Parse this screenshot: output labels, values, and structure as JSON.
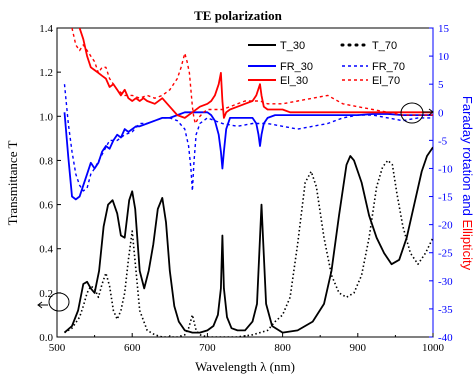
{
  "chart_data": {
    "type": "line",
    "title": "TE polarization",
    "xlabel": "Wavelength λ (nm)",
    "ylabel_left": "Transmittance T",
    "ylabel_right_parts": [
      "Faraday rotation",
      " and ",
      "Ellipticity"
    ],
    "xlim": [
      500,
      1000
    ],
    "ylim_left": [
      0,
      1.4
    ],
    "ylim_right": [
      -40,
      15
    ],
    "xticks": [
      500,
      600,
      700,
      800,
      900,
      1000
    ],
    "yticks_left": [
      0.0,
      0.2,
      0.4,
      0.6,
      0.8,
      1.0,
      1.2,
      1.4
    ],
    "yticks_right": [
      -40,
      -35,
      -30,
      -25,
      -20,
      -15,
      -10,
      -5,
      0,
      5,
      10,
      15
    ],
    "legend_position": "top-right",
    "grid": false,
    "series": [
      {
        "name": "T_30",
        "axis": "left",
        "color": "#000000",
        "style": "solid",
        "x": [
          510,
          520,
          528,
          535,
          540,
          545,
          550,
          556,
          562,
          568,
          574,
          580,
          585,
          590,
          596,
          600,
          604,
          610,
          616,
          622,
          628,
          634,
          640,
          645,
          650,
          656,
          662,
          670,
          680,
          690,
          700,
          708,
          714,
          718,
          720,
          722,
          726,
          732,
          740,
          750,
          760,
          766,
          770,
          772,
          774,
          778,
          786,
          800,
          820,
          840,
          855,
          865,
          875,
          885,
          890,
          895,
          905,
          915,
          925,
          935,
          945,
          955,
          965,
          975,
          985,
          992,
          1000
        ],
        "y": [
          0.02,
          0.05,
          0.12,
          0.24,
          0.25,
          0.22,
          0.2,
          0.3,
          0.5,
          0.6,
          0.62,
          0.56,
          0.46,
          0.45,
          0.62,
          0.66,
          0.58,
          0.3,
          0.22,
          0.3,
          0.42,
          0.58,
          0.63,
          0.52,
          0.3,
          0.14,
          0.07,
          0.03,
          0.02,
          0.02,
          0.03,
          0.05,
          0.1,
          0.22,
          0.46,
          0.22,
          0.09,
          0.04,
          0.03,
          0.03,
          0.07,
          0.15,
          0.45,
          0.6,
          0.45,
          0.15,
          0.05,
          0.02,
          0.03,
          0.07,
          0.15,
          0.3,
          0.55,
          0.78,
          0.82,
          0.8,
          0.7,
          0.55,
          0.45,
          0.38,
          0.33,
          0.35,
          0.45,
          0.6,
          0.75,
          0.82,
          0.86
        ]
      },
      {
        "name": "T_70",
        "axis": "left",
        "color": "#000000",
        "style": "dotted",
        "x": [
          510,
          520,
          530,
          535,
          540,
          545,
          550,
          555,
          560,
          565,
          570,
          575,
          580,
          585,
          590,
          595,
          600,
          605,
          610,
          620,
          630,
          640,
          660,
          670,
          675,
          680,
          685,
          690,
          700,
          720,
          740,
          760,
          780,
          790,
          800,
          810,
          820,
          830,
          838,
          845,
          855,
          865,
          875,
          885,
          895,
          905,
          915,
          925,
          933,
          940,
          946,
          952,
          960,
          970,
          980,
          990,
          1000
        ],
        "y": [
          0.02,
          0.04,
          0.09,
          0.14,
          0.2,
          0.23,
          0.22,
          0.18,
          0.24,
          0.29,
          0.23,
          0.12,
          0.08,
          0.12,
          0.2,
          0.35,
          0.48,
          0.3,
          0.12,
          0.03,
          0.01,
          0.0,
          0.0,
          0.01,
          0.04,
          0.1,
          0.03,
          0.01,
          0.0,
          0.0,
          0.0,
          0.01,
          0.03,
          0.07,
          0.1,
          0.18,
          0.42,
          0.7,
          0.75,
          0.68,
          0.45,
          0.28,
          0.2,
          0.18,
          0.2,
          0.28,
          0.45,
          0.68,
          0.77,
          0.8,
          0.78,
          0.65,
          0.5,
          0.38,
          0.33,
          0.38,
          0.45
        ]
      },
      {
        "name": "FR_30",
        "axis": "right",
        "color": "#0000ff",
        "style": "solid",
        "x": [
          510,
          515,
          520,
          525,
          530,
          535,
          540,
          545,
          550,
          555,
          560,
          565,
          570,
          575,
          580,
          585,
          590,
          595,
          600,
          605,
          610,
          620,
          630,
          640,
          650,
          660,
          670,
          680,
          690,
          700,
          705,
          710,
          715,
          718,
          720,
          722,
          725,
          730,
          740,
          750,
          760,
          765,
          768,
          770,
          772,
          775,
          780,
          790,
          800,
          820,
          840,
          860,
          880,
          900,
          920,
          940,
          960,
          980,
          1000
        ],
        "y": [
          0,
          -8,
          -15,
          -15.5,
          -15,
          -13,
          -11,
          -9,
          -10,
          -9,
          -7,
          -6,
          -6.5,
          -5,
          -4,
          -4.5,
          -3,
          -3.5,
          -3,
          -2.5,
          -2.5,
          -2,
          -1.5,
          -1,
          -1,
          -0.5,
          0,
          0,
          0,
          0,
          -0.5,
          -1.5,
          -4,
          -7,
          -10,
          -7,
          -3,
          -1,
          -1,
          -1,
          -1,
          -2,
          -4,
          -6,
          -4,
          -2,
          -1,
          -0.5,
          -0.5,
          -0.5,
          -0.5,
          -0.5,
          -0.5,
          -0.5,
          -0.3,
          -0.3,
          -0.5,
          -0.5,
          -0.5
        ]
      },
      {
        "name": "FR_70",
        "axis": "right",
        "color": "#0000ff",
        "style": "dotted",
        "x": [
          510,
          515,
          520,
          525,
          530,
          535,
          540,
          545,
          550,
          560,
          570,
          580,
          590,
          600,
          610,
          620,
          630,
          640,
          650,
          660,
          670,
          675,
          678,
          680,
          682,
          685,
          690,
          700,
          710,
          720,
          740,
          760,
          780,
          800,
          820,
          840,
          860,
          880,
          900,
          920,
          940,
          960,
          980,
          1000
        ],
        "y": [
          5,
          -2,
          -7,
          -11,
          -13,
          -14,
          -13.5,
          -11,
          -10,
          -7.5,
          -5,
          -5,
          -4,
          -3.5,
          -2,
          -2,
          -1.5,
          -1,
          -1,
          -1.5,
          -3,
          -6,
          -10,
          -14,
          -9,
          -4,
          -2,
          -1,
          -1.5,
          -2,
          -2.5,
          -2,
          -2,
          -2.5,
          -3,
          -2.5,
          -2,
          -1,
          -0.5,
          -0.5,
          -1,
          -1.5,
          -1,
          -1
        ]
      },
      {
        "name": "El_30",
        "axis": "right",
        "color": "#ff0000",
        "style": "solid",
        "x": [
          530,
          535,
          540,
          545,
          550,
          555,
          560,
          565,
          570,
          575,
          580,
          585,
          590,
          595,
          600,
          605,
          610,
          615,
          620,
          630,
          640,
          650,
          660,
          670,
          680,
          690,
          700,
          705,
          710,
          715,
          718,
          720,
          722,
          725,
          730,
          740,
          750,
          760,
          765,
          770,
          772,
          775,
          780,
          790,
          800,
          810,
          820,
          840,
          860,
          880,
          900,
          920,
          940,
          960,
          980,
          1000
        ],
        "y": [
          15,
          13,
          10,
          8,
          7.5,
          7,
          6.5,
          6,
          4.5,
          5,
          4,
          3,
          4,
          2.5,
          2,
          2.5,
          2,
          2.5,
          2,
          1.5,
          2.5,
          1,
          -0.5,
          -1,
          0,
          1,
          1.5,
          2,
          3,
          5,
          7,
          2,
          -1,
          0,
          0.5,
          1,
          1.5,
          2,
          3,
          5,
          3,
          1,
          0.5,
          0.5,
          0.5,
          0,
          0,
          0,
          0,
          0,
          0,
          0,
          0,
          0,
          0,
          0
        ]
      },
      {
        "name": "El_70",
        "axis": "right",
        "color": "#ff0000",
        "style": "dotted",
        "x": [
          520,
          525,
          530,
          535,
          540,
          545,
          550,
          555,
          560,
          565,
          570,
          575,
          580,
          590,
          600,
          610,
          620,
          630,
          640,
          650,
          660,
          665,
          670,
          673,
          676,
          678,
          680,
          682,
          684,
          688,
          695,
          700,
          710,
          720,
          730,
          740,
          750,
          760,
          770,
          780,
          790,
          800,
          820,
          840,
          860,
          880,
          900,
          920,
          940,
          960,
          980,
          1000
        ],
        "y": [
          15,
          12,
          11,
          12,
          11,
          10,
          9,
          7,
          8,
          8,
          6,
          5,
          4,
          3,
          3,
          2.5,
          3,
          2.5,
          3,
          4,
          6,
          8,
          10.5,
          9,
          7,
          4,
          1,
          -1,
          -2,
          -1,
          0,
          0.5,
          0.5,
          0.5,
          1,
          1.5,
          2,
          2,
          2,
          1.5,
          1.5,
          1.5,
          2,
          2.5,
          3,
          1.5,
          1,
          0.5,
          0,
          -0.5,
          -0.5,
          -0.5
        ]
      }
    ]
  }
}
